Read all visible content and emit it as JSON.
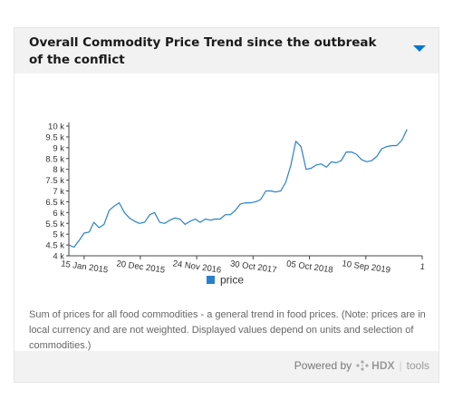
{
  "header": {
    "title": "Overall Commodity Price Trend since the outbreak of the conflict",
    "dropdown_icon": "chevron-down-icon"
  },
  "colors": {
    "line": "#2980c9",
    "accent": "#0077cc",
    "header_bg": "#f2f2f2"
  },
  "chart_data": {
    "type": "line",
    "title": "",
    "xlabel": "",
    "ylabel": "",
    "ylim": [
      4000,
      10000
    ],
    "y_ticks": [
      {
        "value": 4000,
        "label": "4 k"
      },
      {
        "value": 4500,
        "label": "4.5 k"
      },
      {
        "value": 5000,
        "label": "5 k"
      },
      {
        "value": 5500,
        "label": "5.5 k"
      },
      {
        "value": 6000,
        "label": "6 k"
      },
      {
        "value": 6500,
        "label": "6.5 k"
      },
      {
        "value": 7000,
        "label": "7 k"
      },
      {
        "value": 7500,
        "label": "7.5 k"
      },
      {
        "value": 8000,
        "label": "8 k"
      },
      {
        "value": 8500,
        "label": "8.5 k"
      },
      {
        "value": 9000,
        "label": "9 k"
      },
      {
        "value": 9500,
        "label": "9.5 k"
      },
      {
        "value": 10000,
        "label": "10 k"
      }
    ],
    "x_ticks": [
      {
        "date": "2015-01-15",
        "label": "15 Jan 2015"
      },
      {
        "date": "2015-12-20",
        "label": "20 Dec 2015"
      },
      {
        "date": "2016-11-24",
        "label": "24 Nov 2016"
      },
      {
        "date": "2017-10-30",
        "label": "30 Oct 2017"
      },
      {
        "date": "2018-10-05",
        "label": "05 Oct 2018"
      },
      {
        "date": "2019-09-10",
        "label": "10 Sep 2019"
      },
      {
        "date": "2020-08-15",
        "label": "1"
      }
    ],
    "grid": false,
    "legend": "bottom",
    "series": [
      {
        "name": "price",
        "color": "#2980c9",
        "points": [
          [
            "2014-10-15",
            4500
          ],
          [
            "2014-11-15",
            4400
          ],
          [
            "2014-12-15",
            4700
          ],
          [
            "2015-01-15",
            5050
          ],
          [
            "2015-02-15",
            5100
          ],
          [
            "2015-03-15",
            5550
          ],
          [
            "2015-04-15",
            5300
          ],
          [
            "2015-05-15",
            5450
          ],
          [
            "2015-06-15",
            6100
          ],
          [
            "2015-07-15",
            6300
          ],
          [
            "2015-08-15",
            6450
          ],
          [
            "2015-09-15",
            6000
          ],
          [
            "2015-10-15",
            5750
          ],
          [
            "2015-11-15",
            5600
          ],
          [
            "2015-12-15",
            5500
          ],
          [
            "2016-01-15",
            5550
          ],
          [
            "2016-02-15",
            5900
          ],
          [
            "2016-03-15",
            6000
          ],
          [
            "2016-04-15",
            5550
          ],
          [
            "2016-05-15",
            5500
          ],
          [
            "2016-06-15",
            5650
          ],
          [
            "2016-07-15",
            5750
          ],
          [
            "2016-08-15",
            5700
          ],
          [
            "2016-09-15",
            5450
          ],
          [
            "2016-10-15",
            5600
          ],
          [
            "2016-11-15",
            5700
          ],
          [
            "2016-12-15",
            5550
          ],
          [
            "2017-01-15",
            5700
          ],
          [
            "2017-02-15",
            5650
          ],
          [
            "2017-03-15",
            5700
          ],
          [
            "2017-04-15",
            5700
          ],
          [
            "2017-05-15",
            5900
          ],
          [
            "2017-06-15",
            5900
          ],
          [
            "2017-07-15",
            6100
          ],
          [
            "2017-08-15",
            6400
          ],
          [
            "2017-09-15",
            6450
          ],
          [
            "2017-10-15",
            6450
          ],
          [
            "2017-11-15",
            6500
          ],
          [
            "2017-12-15",
            6600
          ],
          [
            "2018-01-15",
            7000
          ],
          [
            "2018-02-15",
            7000
          ],
          [
            "2018-03-15",
            6950
          ],
          [
            "2018-04-15",
            7000
          ],
          [
            "2018-05-15",
            7400
          ],
          [
            "2018-06-15",
            8200
          ],
          [
            "2018-07-15",
            9300
          ],
          [
            "2018-08-15",
            9050
          ],
          [
            "2018-09-15",
            8000
          ],
          [
            "2018-10-15",
            8050
          ],
          [
            "2018-11-15",
            8200
          ],
          [
            "2018-12-15",
            8250
          ],
          [
            "2019-01-15",
            8100
          ],
          [
            "2019-02-15",
            8350
          ],
          [
            "2019-03-15",
            8300
          ],
          [
            "2019-04-15",
            8400
          ],
          [
            "2019-05-15",
            8800
          ],
          [
            "2019-06-15",
            8800
          ],
          [
            "2019-07-15",
            8700
          ],
          [
            "2019-08-15",
            8450
          ],
          [
            "2019-09-15",
            8350
          ],
          [
            "2019-10-15",
            8400
          ],
          [
            "2019-11-15",
            8600
          ],
          [
            "2019-12-15",
            8950
          ],
          [
            "2020-01-15",
            9050
          ],
          [
            "2020-02-15",
            9100
          ],
          [
            "2020-03-15",
            9100
          ],
          [
            "2020-04-15",
            9350
          ],
          [
            "2020-05-15",
            9850
          ]
        ]
      }
    ]
  },
  "legend": {
    "label": "price"
  },
  "footer": {
    "description": "Sum of prices for all food commodities - a general trend in food prices. (Note: prices are in local currency and are not weighted. Displayed values depend on units and selection of commodities.)",
    "powered_by": "Powered by",
    "brand": "HDX",
    "separator": "|",
    "tools": "tools"
  }
}
